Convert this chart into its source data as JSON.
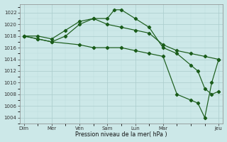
{
  "bg_color": "#cce8e8",
  "grid_major_color": "#aacccc",
  "grid_minor_color": "#bbdddd",
  "line_color": "#1a5c1a",
  "xlabel": "Pression niveau de la mer( hPa )",
  "ylim": [
    1003.0,
    1023.5
  ],
  "yticks": [
    1004,
    1006,
    1008,
    1010,
    1012,
    1014,
    1016,
    1018,
    1020,
    1022
  ],
  "xlim": [
    -0.15,
    7.15
  ],
  "day_x": [
    0.0,
    1.0,
    2.0,
    3.0,
    4.0,
    5.0,
    7.0
  ],
  "day_labels": [
    "Dim",
    "Mer",
    "Ven",
    "Sam",
    "Lun",
    "Mar",
    "Jeu"
  ],
  "s1x": [
    0.0,
    0.5,
    1.0,
    1.5,
    2.0,
    2.5,
    3.0,
    3.5,
    4.0,
    4.5,
    5.0,
    5.5,
    6.0,
    6.5,
    7.0
  ],
  "s1y": [
    1018.0,
    1018.0,
    1017.5,
    1019.0,
    1020.5,
    1021.0,
    1020.0,
    1019.5,
    1019.0,
    1018.5,
    1016.5,
    1015.5,
    1015.0,
    1014.5,
    1014.0
  ],
  "s2x": [
    0.0,
    0.5,
    1.0,
    1.5,
    2.0,
    2.5,
    3.0,
    3.25,
    3.5,
    4.0,
    4.5,
    5.0,
    5.5,
    6.0,
    6.25,
    6.5,
    6.75,
    7.0
  ],
  "s2y": [
    1018.0,
    1017.5,
    1017.0,
    1018.0,
    1020.0,
    1021.0,
    1021.0,
    1022.5,
    1022.5,
    1021.0,
    1019.5,
    1016.0,
    1015.0,
    1013.0,
    1012.0,
    1009.0,
    1008.0,
    1008.5
  ],
  "s3x": [
    0.0,
    0.5,
    1.0,
    2.0,
    2.5,
    3.0,
    3.5,
    4.0,
    4.5,
    5.0,
    5.5,
    6.0,
    6.25,
    6.5,
    6.75,
    7.0
  ],
  "s3y": [
    1018.0,
    1017.5,
    1017.0,
    1016.5,
    1016.0,
    1016.0,
    1016.0,
    1015.5,
    1015.0,
    1014.5,
    1008.0,
    1007.0,
    1006.5,
    1004.0,
    1010.0,
    1014.0
  ]
}
